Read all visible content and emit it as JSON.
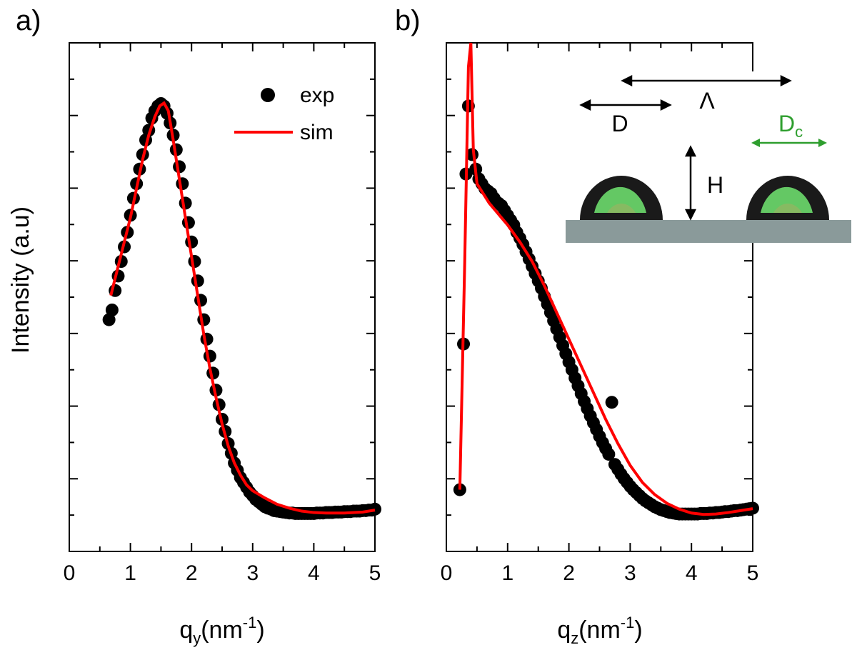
{
  "y_axis_label": "Intensity (a.u)",
  "chart_data": [
    {
      "type": "scatter",
      "panel_label": "a)",
      "xlabel_base": "q",
      "xlabel_sub": "y",
      "xlabel_unit": "(nm",
      "xlabel_exp": "-1",
      "xlabel_close": ")",
      "xlim": [
        0,
        5
      ],
      "ylim": [
        0,
        1
      ],
      "xticks": [
        "0",
        "1",
        "2",
        "3",
        "4",
        "5"
      ],
      "legend": {
        "placement": "top-right",
        "exp": "exp",
        "sim": "sim"
      },
      "series": [
        {
          "name": "exp",
          "style": "markers",
          "color": "#000000",
          "x": [
            0.65,
            0.7,
            0.75,
            0.8,
            0.85,
            0.9,
            0.95,
            1.0,
            1.05,
            1.1,
            1.15,
            1.2,
            1.25,
            1.3,
            1.35,
            1.4,
            1.45,
            1.5,
            1.55,
            1.6,
            1.65,
            1.7,
            1.75,
            1.8,
            1.85,
            1.9,
            1.95,
            2.0,
            2.05,
            2.1,
            2.15,
            2.2,
            2.25,
            2.3,
            2.35,
            2.4,
            2.45,
            2.5,
            2.55,
            2.6,
            2.65,
            2.7,
            2.75,
            2.8,
            2.85,
            2.9,
            2.95,
            3.0,
            3.05,
            3.1,
            3.15,
            3.2,
            3.25,
            3.3,
            3.35,
            3.4,
            3.45,
            3.5,
            3.55,
            3.6,
            3.65,
            3.7,
            3.75,
            3.8,
            3.85,
            3.9,
            3.95,
            4.0,
            4.05,
            4.1,
            4.15,
            4.2,
            4.25,
            4.3,
            4.35,
            4.4,
            4.45,
            4.5,
            4.55,
            4.6,
            4.65,
            4.7,
            4.75,
            4.8,
            4.85,
            4.9,
            4.95,
            5.0
          ],
          "y": [
            0.43,
            0.45,
            0.49,
            0.52,
            0.55,
            0.58,
            0.61,
            0.645,
            0.68,
            0.71,
            0.74,
            0.77,
            0.8,
            0.82,
            0.845,
            0.86,
            0.87,
            0.875,
            0.87,
            0.855,
            0.835,
            0.81,
            0.78,
            0.745,
            0.71,
            0.67,
            0.63,
            0.59,
            0.55,
            0.51,
            0.47,
            0.43,
            0.39,
            0.355,
            0.32,
            0.285,
            0.255,
            0.225,
            0.2,
            0.175,
            0.155,
            0.135,
            0.12,
            0.105,
            0.095,
            0.085,
            0.075,
            0.068,
            0.06,
            0.055,
            0.05,
            0.045,
            0.042,
            0.04,
            0.037,
            0.036,
            0.035,
            0.034,
            0.033,
            0.032,
            0.032,
            0.031,
            0.031,
            0.031,
            0.031,
            0.031,
            0.031,
            0.031,
            0.032,
            0.032,
            0.032,
            0.033,
            0.033,
            0.033,
            0.034,
            0.034,
            0.034,
            0.035,
            0.035,
            0.035,
            0.036,
            0.036,
            0.036,
            0.037,
            0.037,
            0.038,
            0.038,
            0.04
          ]
        },
        {
          "name": "sim",
          "style": "line",
          "color": "#ff0000",
          "x": [
            0.68,
            0.8,
            0.9,
            1.0,
            1.1,
            1.2,
            1.3,
            1.4,
            1.48,
            1.55,
            1.62,
            1.7,
            1.8,
            1.9,
            2.0,
            2.1,
            2.2,
            2.3,
            2.4,
            2.5,
            2.6,
            2.7,
            2.8,
            2.9,
            3.0,
            3.2,
            3.4,
            3.6,
            3.8,
            4.0,
            4.2,
            4.5,
            4.8,
            5.0
          ],
          "y": [
            0.48,
            0.54,
            0.59,
            0.64,
            0.7,
            0.76,
            0.81,
            0.848,
            0.87,
            0.876,
            0.86,
            0.8,
            0.72,
            0.64,
            0.56,
            0.48,
            0.4,
            0.33,
            0.27,
            0.215,
            0.17,
            0.135,
            0.11,
            0.09,
            0.078,
            0.063,
            0.05,
            0.042,
            0.036,
            0.033,
            0.032,
            0.032,
            0.034,
            0.038
          ]
        }
      ]
    },
    {
      "type": "scatter",
      "panel_label": "b)",
      "xlabel_base": "q",
      "xlabel_sub": "z",
      "xlabel_unit": "(nm",
      "xlabel_exp": "-1",
      "xlabel_close": ")",
      "xlim": [
        0,
        5
      ],
      "ylim": [
        0,
        1
      ],
      "xticks": [
        "0",
        "1",
        "2",
        "3",
        "4",
        "5"
      ],
      "inset": {
        "labels": {
          "d": "D",
          "lambda": "Λ",
          "h": "H",
          "dc_base": "D",
          "dc_sub": "c"
        },
        "colors": {
          "core": "#6ddc6d",
          "shell": "#1a1a1a",
          "substrate": "#8a9a9a",
          "dc_arrow": "#2e9e2e"
        }
      },
      "series": [
        {
          "name": "exp",
          "style": "markers",
          "color": "#000000",
          "x": [
            0.22,
            0.28,
            0.32,
            0.36,
            0.42,
            0.48,
            0.53,
            0.58,
            0.63,
            0.68,
            0.73,
            0.78,
            0.85,
            0.9,
            0.95,
            1.0,
            1.05,
            1.1,
            1.15,
            1.2,
            1.25,
            1.3,
            1.35,
            1.4,
            1.45,
            1.5,
            1.55,
            1.6,
            1.65,
            1.7,
            1.75,
            1.8,
            1.85,
            1.9,
            1.95,
            2.0,
            2.05,
            2.1,
            2.15,
            2.2,
            2.25,
            2.3,
            2.35,
            2.4,
            2.45,
            2.5,
            2.55,
            2.6,
            2.65,
            2.7,
            2.75,
            2.8,
            2.85,
            2.9,
            2.95,
            3.0,
            3.05,
            3.1,
            3.15,
            3.2,
            3.25,
            3.3,
            3.35,
            3.4,
            3.45,
            3.5,
            3.55,
            3.6,
            3.65,
            3.7,
            3.75,
            3.8,
            3.85,
            3.9,
            3.95,
            4.0,
            4.05,
            4.1,
            4.15,
            4.2,
            4.25,
            4.3,
            4.35,
            4.4,
            4.45,
            4.5,
            4.55,
            4.6,
            4.65,
            4.7,
            4.75,
            4.8,
            4.85,
            4.9,
            4.95,
            5.0
          ],
          "y": [
            0.08,
            0.38,
            0.73,
            0.87,
            0.77,
            0.74,
            0.72,
            0.71,
            0.7,
            0.695,
            0.69,
            0.68,
            0.67,
            0.665,
            0.655,
            0.645,
            0.635,
            0.625,
            0.61,
            0.598,
            0.585,
            0.57,
            0.555,
            0.54,
            0.525,
            0.51,
            0.495,
            0.478,
            0.462,
            0.445,
            0.428,
            0.411,
            0.394,
            0.377,
            0.36,
            0.343,
            0.327,
            0.31,
            0.294,
            0.278,
            0.262,
            0.247,
            0.232,
            0.218,
            0.204,
            0.19,
            0.177,
            0.165,
            0.153,
            0.26,
            0.132,
            0.122,
            0.112,
            0.103,
            0.095,
            0.087,
            0.08,
            0.074,
            0.068,
            0.062,
            0.057,
            0.053,
            0.049,
            0.045,
            0.042,
            0.039,
            0.037,
            0.035,
            0.033,
            0.032,
            0.031,
            0.03,
            0.03,
            0.03,
            0.03,
            0.03,
            0.03,
            0.03,
            0.031,
            0.031,
            0.031,
            0.032,
            0.032,
            0.033,
            0.033,
            0.034,
            0.035,
            0.035,
            0.036,
            0.037,
            0.037,
            0.038,
            0.039,
            0.04,
            0.041,
            0.042
          ]
        },
        {
          "name": "sim",
          "style": "line",
          "color": "#ff0000",
          "x": [
            0.22,
            0.3,
            0.36,
            0.4,
            0.44,
            0.5,
            0.6,
            0.7,
            0.8,
            0.9,
            1.0,
            1.2,
            1.4,
            1.6,
            1.8,
            2.0,
            2.2,
            2.4,
            2.6,
            2.8,
            3.0,
            3.2,
            3.4,
            3.6,
            3.8,
            4.0,
            4.2,
            4.4,
            4.6,
            4.8,
            5.0
          ],
          "y": [
            0.08,
            0.55,
            0.95,
            1.0,
            0.78,
            0.71,
            0.69,
            0.67,
            0.655,
            0.64,
            0.625,
            0.59,
            0.55,
            0.5,
            0.445,
            0.39,
            0.335,
            0.28,
            0.225,
            0.175,
            0.13,
            0.095,
            0.07,
            0.052,
            0.04,
            0.032,
            0.029,
            0.03,
            0.033,
            0.037,
            0.041
          ]
        }
      ]
    }
  ]
}
